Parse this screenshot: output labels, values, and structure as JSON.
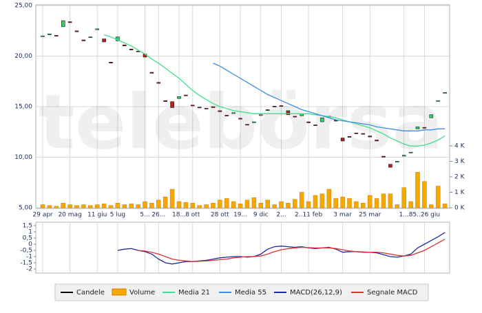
{
  "chart_data": [
    {
      "type": "candlestick",
      "watermark": "telebörsa",
      "categories": [
        "29 apr",
        null,
        null,
        null,
        "20 mag",
        null,
        null,
        null,
        "11 giu",
        null,
        null,
        "5 lug",
        null,
        null,
        null,
        "5...",
        null,
        "26...",
        null,
        null,
        "18...",
        null,
        "8 ott",
        null,
        null,
        null,
        "28 ott",
        null,
        null,
        "19...",
        null,
        null,
        "9 dic",
        null,
        null,
        "2...",
        null,
        null,
        null,
        "2..11 feb",
        null,
        null,
        null,
        null,
        "3 mar",
        null,
        null,
        null,
        "25 mar",
        null,
        null,
        null,
        null,
        "1...",
        null,
        null,
        "85..26 giu",
        null,
        null,
        null
      ],
      "ylim": [
        5,
        25
      ],
      "yticks": [
        {
          "value": 25,
          "label": "25,00"
        },
        {
          "value": 20,
          "label": "20,00"
        },
        {
          "value": 15,
          "label": "15,00"
        },
        {
          "value": 10,
          "label": "10,00"
        },
        {
          "value": 5,
          "label": "5,00"
        }
      ],
      "y2lim": [
        0,
        13.07
      ],
      "y2ticks": [
        {
          "value": 4,
          "label": "4 K"
        },
        {
          "value": 3,
          "label": "3 K"
        },
        {
          "value": 2,
          "label": "2 K"
        },
        {
          "value": 1,
          "label": "1 K"
        },
        {
          "value": 0,
          "label": "0 K"
        }
      ],
      "grid": true,
      "up_color": "#33cc66",
      "down_color": "#b22222",
      "series": [
        {
          "name": "Candele",
          "color": "#000000",
          "open": [
            21.95,
            22.1,
            22.05,
            22.9,
            23.4,
            22.5,
            21.6,
            21.85,
            22.6,
            21.7,
            19.4,
            21.5,
            21.1,
            20.7,
            20.5,
            20.2,
            18.4,
            17.4,
            15.6,
            15.5,
            15.8,
            16.15,
            15.15,
            14.95,
            14.85,
            15.0,
            14.6,
            14.15,
            14.35,
            13.85,
            13.25,
            13.45,
            14.15,
            14.7,
            15.05,
            15.1,
            14.6,
            14.05,
            14.1,
            13.5,
            13.2,
            13.5,
            14.05,
            13.65,
            11.9,
            12.05,
            12.4,
            12.35,
            12.1,
            11.7,
            10.1,
            9.3,
            9.5,
            10.1,
            10.45,
            12.8,
            12.95,
            13.9,
            15.55,
            16.35
          ],
          "close": [
            22.0,
            22.2,
            22.0,
            23.5,
            23.3,
            22.4,
            21.5,
            21.9,
            22.7,
            21.4,
            19.3,
            21.9,
            21.0,
            20.6,
            20.5,
            19.9,
            18.3,
            17.3,
            15.5,
            14.9,
            16.0,
            16.1,
            15.1,
            14.9,
            14.8,
            14.9,
            14.5,
            14.1,
            14.4,
            13.8,
            13.2,
            13.5,
            14.2,
            14.7,
            15.0,
            15.1,
            14.2,
            14.0,
            14.3,
            13.4,
            13.2,
            13.9,
            14.0,
            13.6,
            11.6,
            12.0,
            12.4,
            12.3,
            12.0,
            11.6,
            10.0,
            9.0,
            9.6,
            10.2,
            10.5,
            13.0,
            12.9,
            14.2,
            15.6,
            16.4
          ]
        },
        {
          "name": "Volume",
          "color": "#f5a800",
          "axis": "y2",
          "values": [
            0.2,
            0.15,
            0.1,
            0.3,
            0.2,
            0.15,
            0.2,
            0.15,
            0.2,
            0.25,
            0.15,
            0.3,
            0.2,
            0.25,
            0.2,
            0.4,
            0.3,
            0.5,
            0.7,
            1.2,
            0.4,
            0.35,
            0.3,
            0.15,
            0.2,
            0.3,
            0.5,
            0.6,
            0.4,
            0.25,
            0.5,
            0.65,
            0.3,
            0.5,
            0.2,
            0.4,
            0.3,
            0.55,
            1.0,
            0.4,
            0.8,
            0.9,
            1.2,
            0.6,
            0.7,
            0.6,
            0.4,
            0.3,
            0.8,
            0.6,
            0.9,
            0.9,
            0.2,
            1.3,
            0.4,
            2.3,
            1.7,
            0.2,
            1.4,
            0.25
          ]
        },
        {
          "name": "Media 21",
          "color": "#3ee08c",
          "values": [
            null,
            null,
            null,
            null,
            null,
            null,
            null,
            null,
            null,
            22.1,
            21.9,
            21.6,
            21.3,
            21.0,
            20.6,
            20.2,
            19.7,
            19.3,
            18.8,
            18.3,
            17.8,
            17.2,
            16.6,
            16.1,
            15.7,
            15.3,
            15.0,
            14.8,
            14.6,
            14.5,
            14.4,
            14.3,
            14.3,
            14.3,
            14.3,
            14.3,
            14.3,
            14.3,
            14.3,
            14.3,
            14.2,
            14.1,
            14.0,
            13.9,
            13.7,
            13.5,
            13.3,
            13.1,
            12.9,
            12.6,
            12.3,
            11.9,
            11.6,
            11.3,
            11.1,
            11.1,
            11.2,
            11.4,
            11.7,
            12.1
          ]
        },
        {
          "name": "Media 55",
          "color": "#3b8ee0",
          "values": [
            null,
            null,
            null,
            null,
            null,
            null,
            null,
            null,
            null,
            null,
            null,
            null,
            null,
            null,
            null,
            null,
            null,
            null,
            null,
            null,
            null,
            null,
            null,
            null,
            null,
            19.3,
            19.0,
            18.6,
            18.2,
            17.8,
            17.4,
            17.0,
            16.6,
            16.2,
            15.9,
            15.6,
            15.3,
            15.0,
            14.7,
            14.5,
            14.3,
            14.1,
            13.9,
            13.7,
            13.6,
            13.5,
            13.4,
            13.3,
            13.2,
            13.0,
            12.9,
            12.8,
            12.7,
            12.6,
            12.6,
            12.6,
            12.7,
            12.7,
            12.8,
            12.8
          ]
        }
      ]
    },
    {
      "type": "line",
      "ylim": [
        -2,
        1.5
      ],
      "yticks": [
        {
          "value": 1.5,
          "label": "1,5"
        },
        1,
        {
          "value": 0.5,
          "label": "0,5"
        },
        0,
        {
          "value": -0.5,
          "label": "-0,5"
        },
        -1,
        {
          "value": -1.5,
          "label": "-1,5"
        },
        -2
      ],
      "series": [
        {
          "name": "MACD(26,12,9)",
          "color": "#1a2a9a",
          "values": [
            null,
            null,
            null,
            null,
            null,
            null,
            null,
            null,
            null,
            null,
            null,
            -0.5,
            -0.4,
            -0.35,
            -0.5,
            -0.6,
            -0.8,
            -1.2,
            -1.5,
            -1.6,
            -1.5,
            -1.4,
            -1.4,
            -1.35,
            -1.3,
            -1.2,
            -1.1,
            -1.05,
            -1.0,
            -1.0,
            -1.05,
            -1.0,
            -0.8,
            -0.4,
            -0.2,
            -0.15,
            -0.2,
            -0.25,
            -0.2,
            -0.3,
            -0.35,
            -0.3,
            -0.25,
            -0.4,
            -0.65,
            -0.6,
            -0.6,
            -0.65,
            -0.65,
            -0.7,
            -0.85,
            -1.0,
            -1.05,
            -0.95,
            -0.8,
            -0.3,
            0.0,
            0.3,
            0.6,
            0.95
          ]
        },
        {
          "name": "Segnale MACD",
          "color": "#e03030",
          "values": [
            null,
            null,
            null,
            null,
            null,
            null,
            null,
            null,
            null,
            null,
            null,
            null,
            null,
            null,
            -0.5,
            -0.55,
            -0.65,
            -0.8,
            -1.0,
            -1.2,
            -1.3,
            -1.35,
            -1.4,
            -1.38,
            -1.35,
            -1.3,
            -1.25,
            -1.2,
            -1.1,
            -1.05,
            -1.0,
            -1.0,
            -0.95,
            -0.8,
            -0.6,
            -0.45,
            -0.35,
            -0.3,
            -0.25,
            -0.28,
            -0.3,
            -0.3,
            -0.3,
            -0.35,
            -0.45,
            -0.55,
            -0.6,
            -0.62,
            -0.65,
            -0.65,
            -0.7,
            -0.8,
            -0.9,
            -0.95,
            -0.9,
            -0.7,
            -0.5,
            -0.2,
            0.1,
            0.4
          ]
        }
      ]
    }
  ]
}
